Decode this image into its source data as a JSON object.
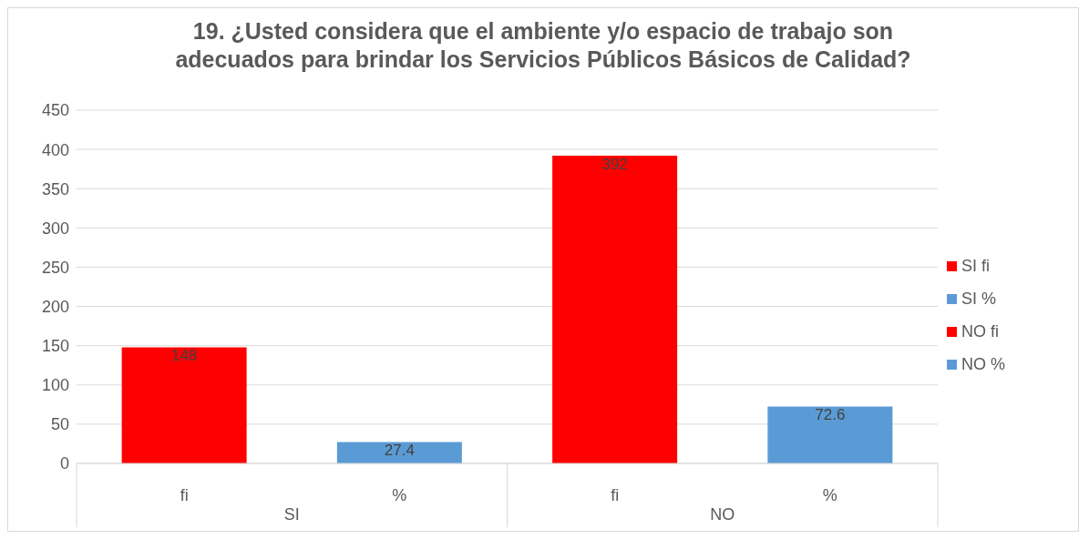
{
  "chart_data": {
    "type": "bar",
    "title": "19. ¿Usted considera que el ambiente y/o espacio de trabajo son adecuados para brindar los Servicios Públicos Básicos de Calidad?",
    "categories": [
      "fi",
      "%",
      "fi",
      "%"
    ],
    "series": [
      {
        "name": "SI fi",
        "color": "#ff0000",
        "values": [
          148,
          null,
          null,
          null
        ]
      },
      {
        "name": "SI %",
        "color": "#5b9bd5",
        "values": [
          null,
          27.4,
          null,
          null
        ]
      },
      {
        "name": "NO fi",
        "color": "#ff0000",
        "values": [
          null,
          null,
          392,
          null
        ]
      },
      {
        "name": "NO %",
        "color": "#5b9bd5",
        "values": [
          null,
          null,
          null,
          72.6
        ]
      }
    ],
    "annotations": [
      "SI",
      "NO"
    ],
    "ylim": [
      0,
      450
    ],
    "yticks": [
      0,
      50,
      100,
      150,
      200,
      250,
      300,
      350,
      400,
      450
    ],
    "grid": "y",
    "legend": "right",
    "data_labels": true
  }
}
